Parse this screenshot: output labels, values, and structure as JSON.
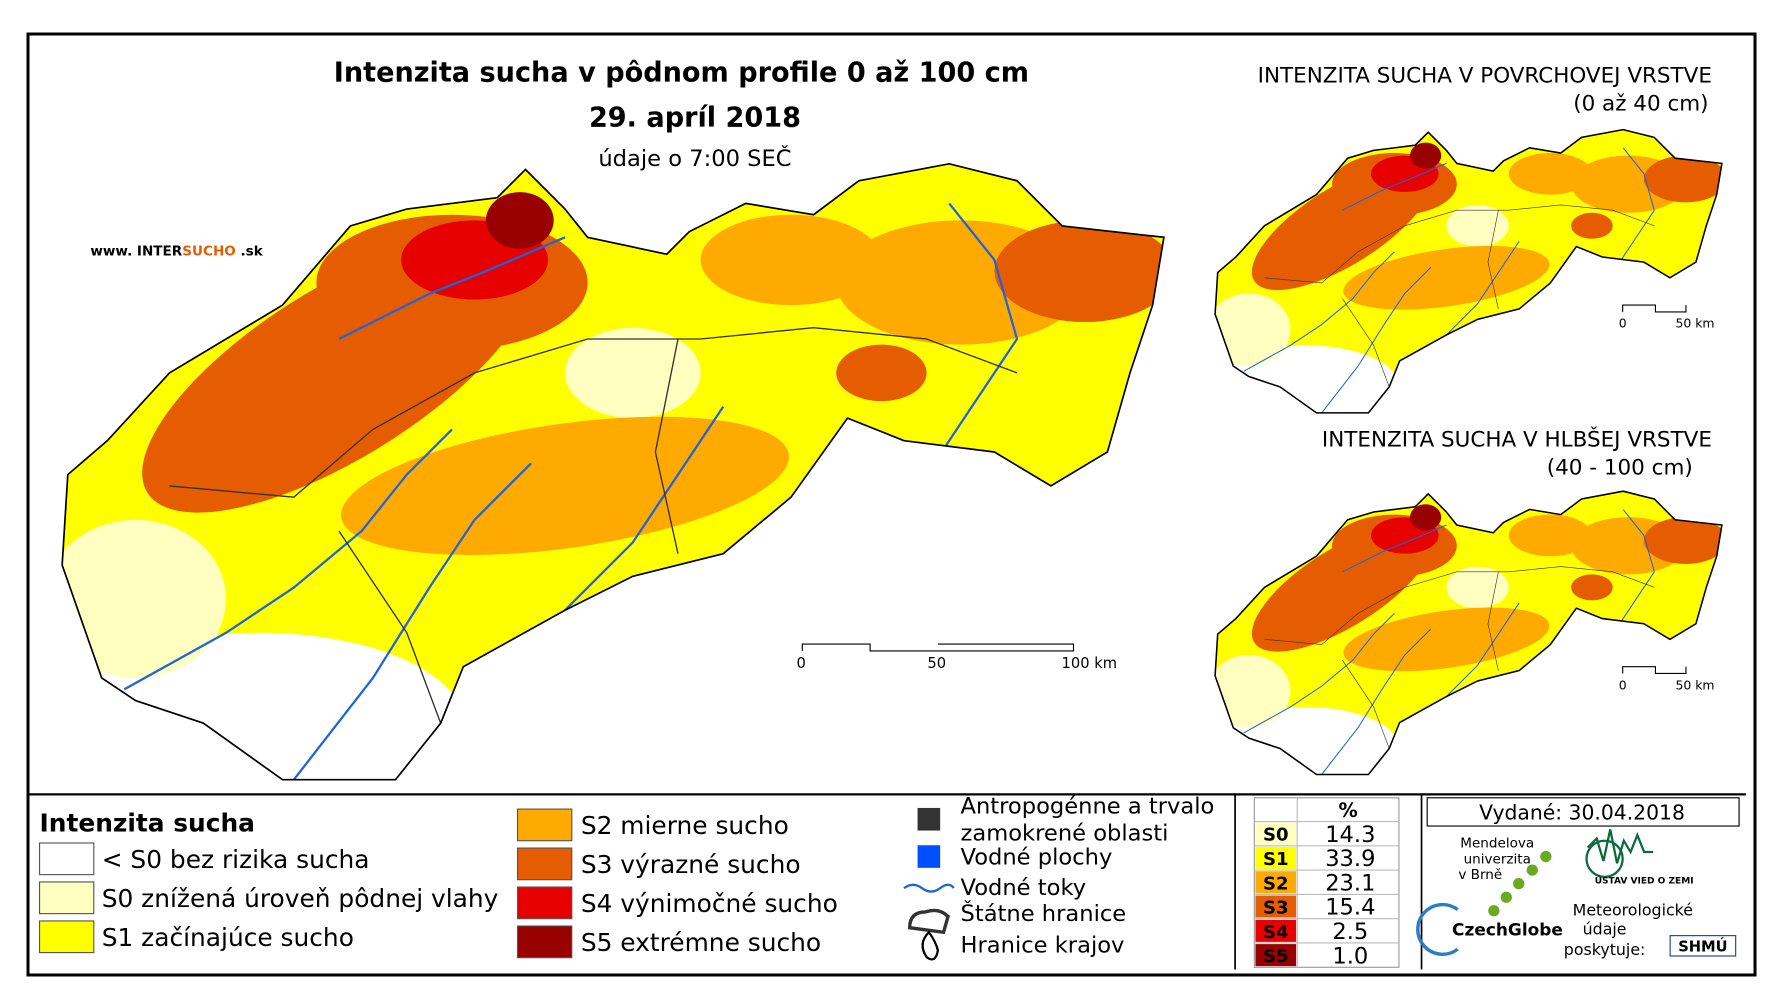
{
  "header": {
    "title": "Intenzita sucha v pôdnom profile 0 až 100 cm",
    "date": "29. apríl 2018",
    "time_note": "údaje o 7:00 SEČ",
    "website_prefix": "www. INTER",
    "website_brand": "SUCHO",
    "website_suffix": " .sk"
  },
  "main_scale": [
    "0",
    "50",
    "100 km"
  ],
  "insets": [
    {
      "title": "INTENZITA SUCHA V POVRCHOVEJ VRSTVE",
      "subtitle": "(0 až 40 cm)",
      "scale": [
        "0",
        "50 km"
      ]
    },
    {
      "title": "INTENZITA SUCHA V HLBŠEJ VRSTVE",
      "subtitle": "(40 - 100 cm)",
      "scale": [
        "0",
        "50 km"
      ]
    }
  ],
  "legend": {
    "title": "Intenzita sucha",
    "classes": [
      {
        "label": "< S0 bez rizika sucha",
        "color": "#ffffff"
      },
      {
        "label": "S0 znížená úroveň pôdnej vlahy",
        "color": "#ffffc0"
      },
      {
        "label": "S1 začínajúce sucho",
        "color": "#ffff00"
      },
      {
        "label": "S2 mierne sucho",
        "color": "#ffaa00"
      },
      {
        "label": "S3 výrazné sucho",
        "color": "#e65c00"
      },
      {
        "label": "S4 výnimočné sucho",
        "color": "#e60000"
      },
      {
        "label": "S5 extrémne sucho",
        "color": "#990000"
      }
    ]
  },
  "overlays": [
    {
      "label_lines": [
        "Antropogénne a trvalo",
        "zamokrené oblasti"
      ]
    },
    {
      "label_lines": [
        "Vodné plochy"
      ]
    },
    {
      "label_lines": [
        "Vodné toky"
      ]
    },
    {
      "label_lines": [
        "Štátne hranice"
      ]
    },
    {
      "label_lines": [
        "Hranice krajov"
      ]
    }
  ],
  "table": {
    "header": "%",
    "rows": [
      {
        "code": "S0",
        "value": "14.3",
        "color": "#ffffc0"
      },
      {
        "code": "S1",
        "value": "33.9",
        "color": "#ffff00"
      },
      {
        "code": "S2",
        "value": "23.1",
        "color": "#ffaa00"
      },
      {
        "code": "S3",
        "value": "15.4",
        "color": "#e65c00"
      },
      {
        "code": "S4",
        "value": "2.5",
        "color": "#e60000"
      },
      {
        "code": "S5",
        "value": "1.0",
        "color": "#990000"
      }
    ]
  },
  "issued": "Vydané: 30.04.2018",
  "credits": {
    "mendel": [
      "Mendelova",
      "univerzita",
      "v Brně"
    ],
    "czechglobe": "CzechGlobe",
    "ustav": "ÚSTAV VIED O ZEMI",
    "meteo": [
      "Meteorologické",
      "údaje",
      "poskytuje:"
    ],
    "shmu": "SHMÚ"
  }
}
